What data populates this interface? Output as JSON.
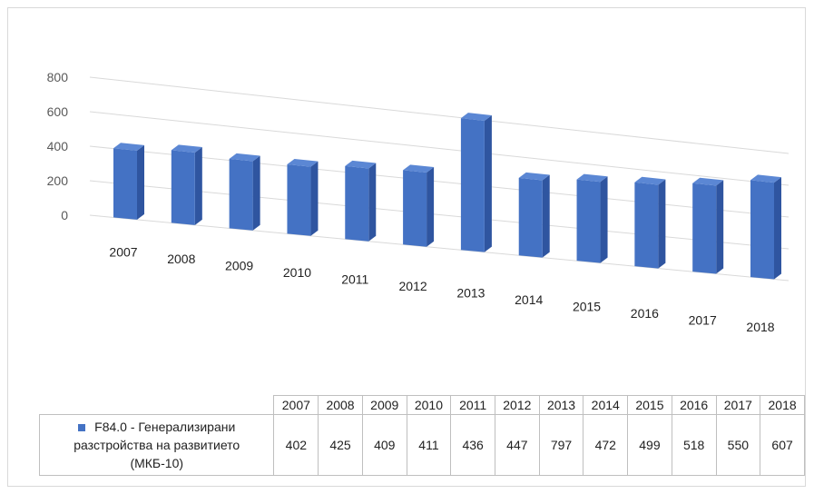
{
  "chart_data": {
    "type": "bar",
    "categories": [
      "2007",
      "2008",
      "2009",
      "2010",
      "2011",
      "2012",
      "2013",
      "2014",
      "2015",
      "2016",
      "2017",
      "2018"
    ],
    "series": [
      {
        "name": "F84.0 - Генерализирани разстройства на развитието (МКБ-10)",
        "values": [
          402,
          425,
          409,
          411,
          436,
          447,
          797,
          472,
          499,
          518,
          550,
          607
        ],
        "color": "#4472c4"
      }
    ],
    "y_ticks": [
      "0",
      "200",
      "400",
      "600",
      "800"
    ],
    "ylim": [
      0,
      800
    ],
    "grid": true,
    "legend": "data-table",
    "title": "",
    "xlabel": "",
    "ylabel": ""
  },
  "table": {
    "series_label_lines": [
      "F84.0 - Генерализирани",
      "разстройства на развитието",
      "(МКБ-10)"
    ]
  }
}
